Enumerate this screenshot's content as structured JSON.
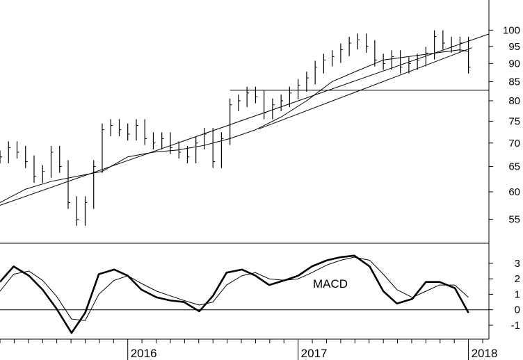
{
  "chart_data": [
    {
      "type": "ohlc",
      "yscale": "log",
      "ylim": [
        51,
        110
      ],
      "yticks": [
        55,
        60,
        65,
        70,
        75,
        80,
        85,
        90,
        95,
        100
      ],
      "x_years": [
        "2016",
        "2017",
        "2018"
      ],
      "xlim": [
        2015.25,
        2018.12
      ],
      "grid": false,
      "series": [
        {
          "type": "ohlc",
          "x": [
            2015.25,
            2015.3,
            2015.35,
            2015.4,
            2015.45,
            2015.5,
            2015.55,
            2015.6,
            2015.65,
            2015.7,
            2015.75,
            2015.8,
            2015.85,
            2015.9,
            2015.95,
            2016.0,
            2016.05,
            2016.1,
            2016.15,
            2016.2,
            2016.25,
            2016.3,
            2016.35,
            2016.4,
            2016.45,
            2016.5,
            2016.55,
            2016.6,
            2016.65,
            2016.7,
            2016.75,
            2016.8,
            2016.85,
            2016.9,
            2016.95,
            2017.0,
            2017.05,
            2017.1,
            2017.15,
            2017.2,
            2017.25,
            2017.3,
            2017.35,
            2017.4,
            2017.45,
            2017.5,
            2017.55,
            2017.6,
            2017.65,
            2017.7,
            2017.75,
            2017.8,
            2017.85,
            2017.9,
            2017.95,
            2018.0
          ],
          "close": [
            67,
            69,
            68,
            66,
            63,
            64,
            68,
            65,
            58,
            55,
            58,
            65,
            73,
            74,
            73,
            72,
            74,
            71,
            70,
            71,
            69,
            68,
            67,
            70,
            72,
            66,
            71,
            79,
            80,
            82,
            81,
            77,
            79,
            80,
            82,
            84,
            86,
            89,
            91,
            92,
            94,
            96,
            97,
            95,
            91,
            90,
            92,
            89,
            90,
            91,
            93,
            98,
            96,
            95,
            96,
            89
          ]
        },
        {
          "type": "line",
          "x": [
            2015.25,
            2015.4,
            2015.55,
            2015.7,
            2015.85,
            2016.0,
            2016.15,
            2016.3,
            2016.45,
            2016.6,
            2016.75,
            2016.9,
            2017.05,
            2017.2,
            2017.35,
            2017.5,
            2017.65,
            2017.8,
            2017.95,
            2018.0
          ],
          "y": [
            58,
            60.5,
            62,
            63,
            64,
            67,
            68,
            68.5,
            69.5,
            71,
            73,
            76,
            80,
            85,
            88,
            91,
            92,
            93,
            94,
            93.5
          ]
        },
        {
          "type": "trendline",
          "x": [
            2015.25,
            2018.12
          ],
          "y": [
            57.5,
            98.8
          ]
        },
        {
          "type": "trendline",
          "x": [
            2016.77,
            2018.02
          ],
          "y": [
            73.2,
            94.6
          ]
        },
        {
          "type": "hline",
          "x": [
            2016.6,
            2018.12
          ],
          "y": [
            82.7,
            82.7
          ]
        }
      ]
    },
    {
      "type": "line",
      "ylim": [
        -1.9,
        4.3
      ],
      "yticks": [
        -1,
        0,
        1,
        2,
        3
      ],
      "hline": 0,
      "annotation": "MACD",
      "grid": false,
      "series": [
        {
          "type": "line",
          "x": [
            2015.25,
            2015.33,
            2015.42,
            2015.5,
            2015.58,
            2015.67,
            2015.75,
            2015.83,
            2015.92,
            2016.0,
            2016.08,
            2016.17,
            2016.25,
            2016.33,
            2016.42,
            2016.5,
            2016.58,
            2016.67,
            2016.75,
            2016.83,
            2016.92,
            2017.0,
            2017.08,
            2017.17,
            2017.25,
            2017.33,
            2017.42,
            2017.5,
            2017.58,
            2017.67,
            2017.75,
            2017.83,
            2017.92,
            2018.0
          ],
          "y": [
            1.8,
            2.8,
            2.2,
            1.3,
            0.1,
            -1.5,
            -0.2,
            2.3,
            2.6,
            2.2,
            1.3,
            0.8,
            0.6,
            0.5,
            -0.1,
            0.9,
            2.4,
            2.6,
            2.2,
            1.6,
            1.9,
            2.2,
            2.8,
            3.2,
            3.4,
            3.5,
            2.8,
            1.2,
            0.4,
            0.7,
            1.8,
            1.8,
            1.4,
            -0.2
          ]
        },
        {
          "type": "line",
          "x": [
            2015.25,
            2015.33,
            2015.42,
            2015.5,
            2015.58,
            2015.67,
            2015.75,
            2015.83,
            2015.92,
            2016.0,
            2016.08,
            2016.17,
            2016.25,
            2016.33,
            2016.42,
            2016.5,
            2016.58,
            2016.67,
            2016.75,
            2016.83,
            2016.92,
            2017.0,
            2017.08,
            2017.17,
            2017.25,
            2017.33,
            2017.42,
            2017.5,
            2017.58,
            2017.67,
            2017.75,
            2017.83,
            2017.92,
            2018.0
          ],
          "y": [
            1.2,
            2.3,
            2.5,
            1.9,
            0.9,
            -0.6,
            -0.7,
            1.0,
            1.9,
            2.2,
            1.7,
            1.2,
            0.9,
            0.6,
            0.3,
            0.5,
            1.6,
            2.2,
            2.4,
            2.0,
            1.9,
            2.0,
            2.4,
            2.9,
            3.2,
            3.4,
            3.2,
            2.3,
            1.3,
            0.8,
            1.2,
            1.6,
            1.6,
            0.8
          ]
        }
      ]
    }
  ]
}
